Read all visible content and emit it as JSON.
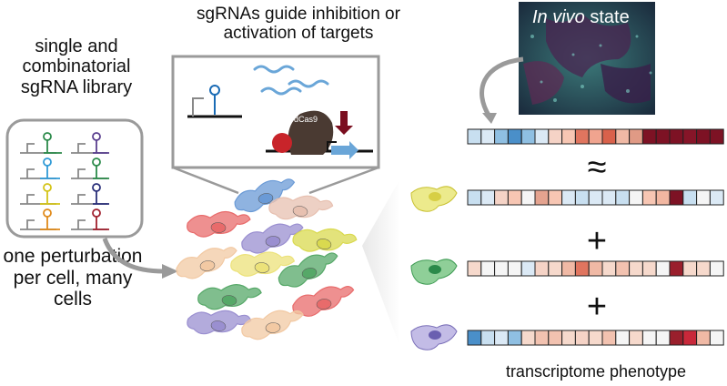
{
  "labels": {
    "library": "single and combinatorial sgRNA library",
    "perturbation": "one perturbation per cell, many cells",
    "guides": "sgRNAs guide inhibition or activation of targets",
    "in_vivo_italic": "In vivo",
    "in_vivo_rest": " state",
    "dcas9": "dCas9",
    "phenotype": "transcriptome phenotype",
    "approx": "≈",
    "plus": "+"
  },
  "colors": {
    "blue": "#6ea9d6",
    "dark_red": "#7a0e1f",
    "cell_colors": [
      "#e7c0b0",
      "#e86b6b",
      "#6a9ad6",
      "#d9d94f",
      "#9a8fd0",
      "#56a868",
      "#ece27a",
      "#f2c9a3"
    ]
  },
  "heatmap_rows": [
    [
      "#c8dff0",
      "#dbe9f5",
      "#8fbfe2",
      "#4a8fc9",
      "#8fbfe2",
      "#dbe9f5",
      "#f5d3c6",
      "#f7c6b3",
      "#e0755f",
      "#f0a48f",
      "#d9614b",
      "#f0b9a5",
      "#e09a85",
      "#7d1224",
      "#7d1224",
      "#7d1224",
      "#861528",
      "#7d1224",
      "#7d1224"
    ],
    [
      "#c8dff0",
      "#dbe9f5",
      "#f5d3c6",
      "#f7c6b3",
      "#f5f5f5",
      "#e4a38f",
      "#f7c6b3",
      "#dbe9f5",
      "#c8dff0",
      "#dbe9f5",
      "#dbe9f5",
      "#c8dff0",
      "#f5f5f5",
      "#f7c6b3",
      "#f2b7a1",
      "#7d1224",
      "#c8dff0",
      "#f5f5f5",
      "#dbe9f5"
    ],
    [
      "#f6d9cc",
      "#f5f5f5",
      "#f5f5f5",
      "#f5f5f5",
      "#dbe9f5",
      "#f5d3c6",
      "#f6d9cc",
      "#f0b9a5",
      "#e0755f",
      "#f0b9a5",
      "#f6d9cc",
      "#f2c2b0",
      "#f6d9cc",
      "#f6d9cc",
      "#f5f5f5",
      "#9a1f2c",
      "#f6d9cc",
      "#f6d9cc",
      "#f5f5f5"
    ],
    [
      "#4a8fc9",
      "#c8dff0",
      "#dbe9f5",
      "#8fbfe2",
      "#f6d9cc",
      "#f2c2b0",
      "#f2c2b0",
      "#f6d9cc",
      "#f5d3c6",
      "#f6d9cc",
      "#f2c2b0",
      "#f5f5f5",
      "#f6d9cc",
      "#f5f5f5",
      "#f5f5f5",
      "#9a1f2c",
      "#c8283a",
      "#f0b9a5",
      "#f5f5f5"
    ]
  ]
}
